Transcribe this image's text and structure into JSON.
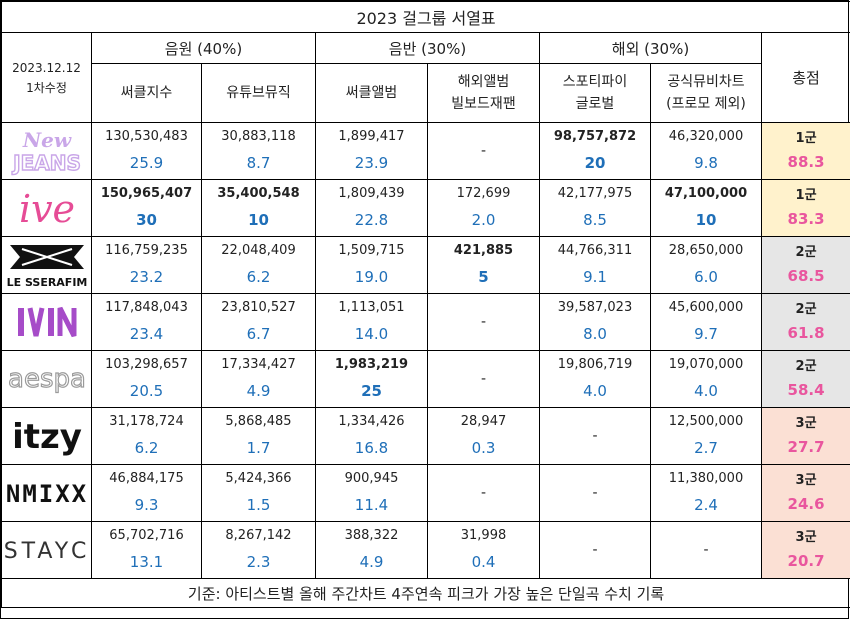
{
  "title": "2023 걸그룹 서열표",
  "corner": {
    "date": "2023.12.12",
    "revision": "1차수정"
  },
  "groups": [
    {
      "label": "음원 (40%)"
    },
    {
      "label": "음반 (30%)"
    },
    {
      "label": "해외 (30%)"
    }
  ],
  "columns": [
    {
      "label": "써클지수"
    },
    {
      "label": "유튜브뮤직"
    },
    {
      "label": "써클앨범"
    },
    {
      "label": "해외앨범\n빌보드재팬"
    },
    {
      "label": "스포티파이\n글로벌"
    },
    {
      "label": "공식뮤비차트\n(프로모 제외)"
    }
  ],
  "total_header": "총점",
  "rows": [
    {
      "logo": {
        "name": "newjeans-logo",
        "text": "New\nJEANS",
        "color": "#c9a6e8"
      },
      "tier_bg": "#fff2cc",
      "cells": [
        {
          "raw": "130,530,483",
          "score": "25.9",
          "bold": false
        },
        {
          "raw": "30,883,118",
          "score": "8.7",
          "bold": false
        },
        {
          "raw": "1,899,417",
          "score": "23.9",
          "bold": false
        },
        {
          "raw": "-",
          "score": "",
          "bold": false
        },
        {
          "raw": "98,757,872",
          "score": "20",
          "bold": true
        },
        {
          "raw": "46,320,000",
          "score": "9.8",
          "bold": false
        }
      ],
      "tier": "1군",
      "total": "88.3"
    },
    {
      "logo": {
        "name": "ive-logo",
        "text": "IVE",
        "color": "#e64c96"
      },
      "tier_bg": "#fff2cc",
      "cells": [
        {
          "raw": "150,965,407",
          "score": "30",
          "bold": true
        },
        {
          "raw": "35,400,548",
          "score": "10",
          "bold": true
        },
        {
          "raw": "1,809,439",
          "score": "22.8",
          "bold": false
        },
        {
          "raw": "172,699",
          "score": "2.0",
          "bold": false
        },
        {
          "raw": "42,177,975",
          "score": "8.5",
          "bold": false
        },
        {
          "raw": "47,100,000",
          "score": "10",
          "bold": true
        }
      ],
      "tier": "1군",
      "total": "83.3"
    },
    {
      "logo": {
        "name": "le-sserafim-logo",
        "text": "LE SSERAFIM",
        "color": "#111111"
      },
      "tier_bg": "#e6e6e6",
      "cells": [
        {
          "raw": "116,759,235",
          "score": "23.2",
          "bold": false
        },
        {
          "raw": "22,048,409",
          "score": "6.2",
          "bold": false
        },
        {
          "raw": "1,509,715",
          "score": "19.0",
          "bold": false
        },
        {
          "raw": "421,885",
          "score": "5",
          "bold": true
        },
        {
          "raw": "44,766,311",
          "score": "9.1",
          "bold": false
        },
        {
          "raw": "28,650,000",
          "score": "6.0",
          "bold": false
        }
      ],
      "tier": "2군",
      "total": "68.5"
    },
    {
      "logo": {
        "name": "ivin-logo",
        "text": "IVIN",
        "color": "#a64cc8"
      },
      "tier_bg": "#e6e6e6",
      "cells": [
        {
          "raw": "117,848,043",
          "score": "23.4",
          "bold": false
        },
        {
          "raw": "23,810,527",
          "score": "6.7",
          "bold": false
        },
        {
          "raw": "1,113,051",
          "score": "14.0",
          "bold": false
        },
        {
          "raw": "-",
          "score": "",
          "bold": false
        },
        {
          "raw": "39,587,023",
          "score": "8.0",
          "bold": false
        },
        {
          "raw": "45,600,000",
          "score": "9.7",
          "bold": false
        }
      ],
      "tier": "2군",
      "total": "61.8"
    },
    {
      "logo": {
        "name": "aespa-logo",
        "text": "aespa",
        "color": "#9a9a9a"
      },
      "tier_bg": "#e6e6e6",
      "cells": [
        {
          "raw": "103,298,657",
          "score": "20.5",
          "bold": false
        },
        {
          "raw": "17,334,427",
          "score": "4.9",
          "bold": false
        },
        {
          "raw": "1,983,219",
          "score": "25",
          "bold": true
        },
        {
          "raw": "-",
          "score": "",
          "bold": false
        },
        {
          "raw": "19,806,719",
          "score": "4.0",
          "bold": false
        },
        {
          "raw": "19,070,000",
          "score": "4.0",
          "bold": false
        }
      ],
      "tier": "2군",
      "total": "58.4"
    },
    {
      "logo": {
        "name": "itzy-logo",
        "text": "itzy",
        "color": "#111111"
      },
      "tier_bg": "#fbe0d4",
      "cells": [
        {
          "raw": "31,178,724",
          "score": "6.2",
          "bold": false
        },
        {
          "raw": "5,868,485",
          "score": "1.7",
          "bold": false
        },
        {
          "raw": "1,334,426",
          "score": "16.8",
          "bold": false
        },
        {
          "raw": "28,947",
          "score": "0.3",
          "bold": false
        },
        {
          "raw": "-",
          "score": "",
          "bold": false
        },
        {
          "raw": "12,500,000",
          "score": "2.7",
          "bold": false
        }
      ],
      "tier": "3군",
      "total": "27.7"
    },
    {
      "logo": {
        "name": "nmixx-logo",
        "text": "NMIXX",
        "color": "#111111"
      },
      "tier_bg": "#fbe0d4",
      "cells": [
        {
          "raw": "46,884,175",
          "score": "9.3",
          "bold": false
        },
        {
          "raw": "5,424,366",
          "score": "1.5",
          "bold": false
        },
        {
          "raw": "900,945",
          "score": "11.4",
          "bold": false
        },
        {
          "raw": "-",
          "score": "",
          "bold": false
        },
        {
          "raw": "-",
          "score": "",
          "bold": false
        },
        {
          "raw": "11,380,000",
          "score": "2.4",
          "bold": false
        }
      ],
      "tier": "3군",
      "total": "24.6"
    },
    {
      "logo": {
        "name": "stayc-logo",
        "text": "STAYC",
        "color": "#333333"
      },
      "tier_bg": "#fbe0d4",
      "cells": [
        {
          "raw": "65,702,716",
          "score": "13.1",
          "bold": false
        },
        {
          "raw": "8,267,142",
          "score": "2.3",
          "bold": false
        },
        {
          "raw": "388,322",
          "score": "4.9",
          "bold": false
        },
        {
          "raw": "31,998",
          "score": "0.4",
          "bold": false
        },
        {
          "raw": "-",
          "score": "",
          "bold": false
        },
        {
          "raw": "-",
          "score": "",
          "bold": false
        }
      ],
      "tier": "3군",
      "total": "20.7"
    }
  ],
  "footer": "기준: 아티스트별 올해 주간차트 4주연속 피크가 가장 높은 단일곡 수치 기록"
}
